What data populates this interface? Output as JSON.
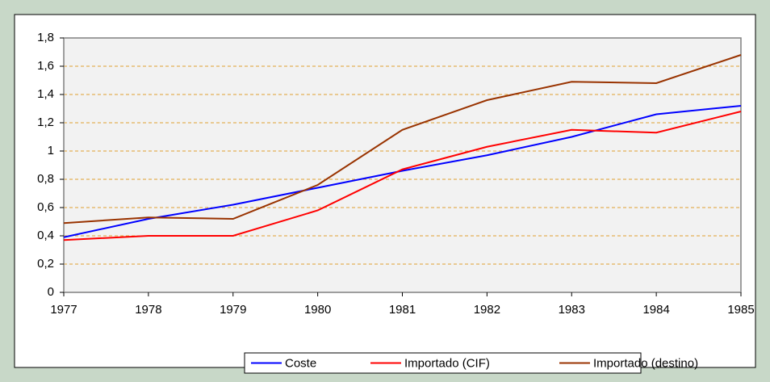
{
  "chart_data": {
    "type": "line",
    "x": [
      1977,
      1978,
      1979,
      1980,
      1981,
      1982,
      1983,
      1984,
      1985
    ],
    "series": [
      {
        "name": "Coste",
        "color": "#0000ff",
        "values": [
          0.39,
          0.52,
          0.62,
          0.74,
          0.86,
          0.97,
          1.1,
          1.26,
          1.32
        ]
      },
      {
        "name": "Importado (CIF)",
        "color": "#ff0000",
        "values": [
          0.37,
          0.4,
          0.4,
          0.58,
          0.87,
          1.03,
          1.15,
          1.13,
          1.28
        ]
      },
      {
        "name": "Importado (destino)",
        "color": "#993300",
        "values": [
          0.49,
          0.53,
          0.52,
          0.76,
          1.15,
          1.36,
          1.49,
          1.48,
          1.68
        ]
      }
    ],
    "xlim": [
      1977,
      1985
    ],
    "xticks": [
      1977,
      1978,
      1979,
      1980,
      1981,
      1982,
      1983,
      1984,
      1985
    ],
    "ylim": [
      0,
      1.8
    ],
    "yticks": [
      0,
      {
        "value": 0.2,
        "label": "0,2"
      },
      {
        "value": 0.4,
        "label": "0,4"
      },
      {
        "value": 0.6,
        "label": "0,6"
      },
      {
        "value": 0.8,
        "label": "0,8"
      },
      1,
      {
        "value": 1.2,
        "label": "1,2"
      },
      {
        "value": 1.4,
        "label": "1,4"
      },
      {
        "value": 1.6,
        "label": "1,6"
      },
      {
        "value": 1.8,
        "label": "1,8"
      }
    ],
    "grid": true,
    "legend": "bottom"
  }
}
